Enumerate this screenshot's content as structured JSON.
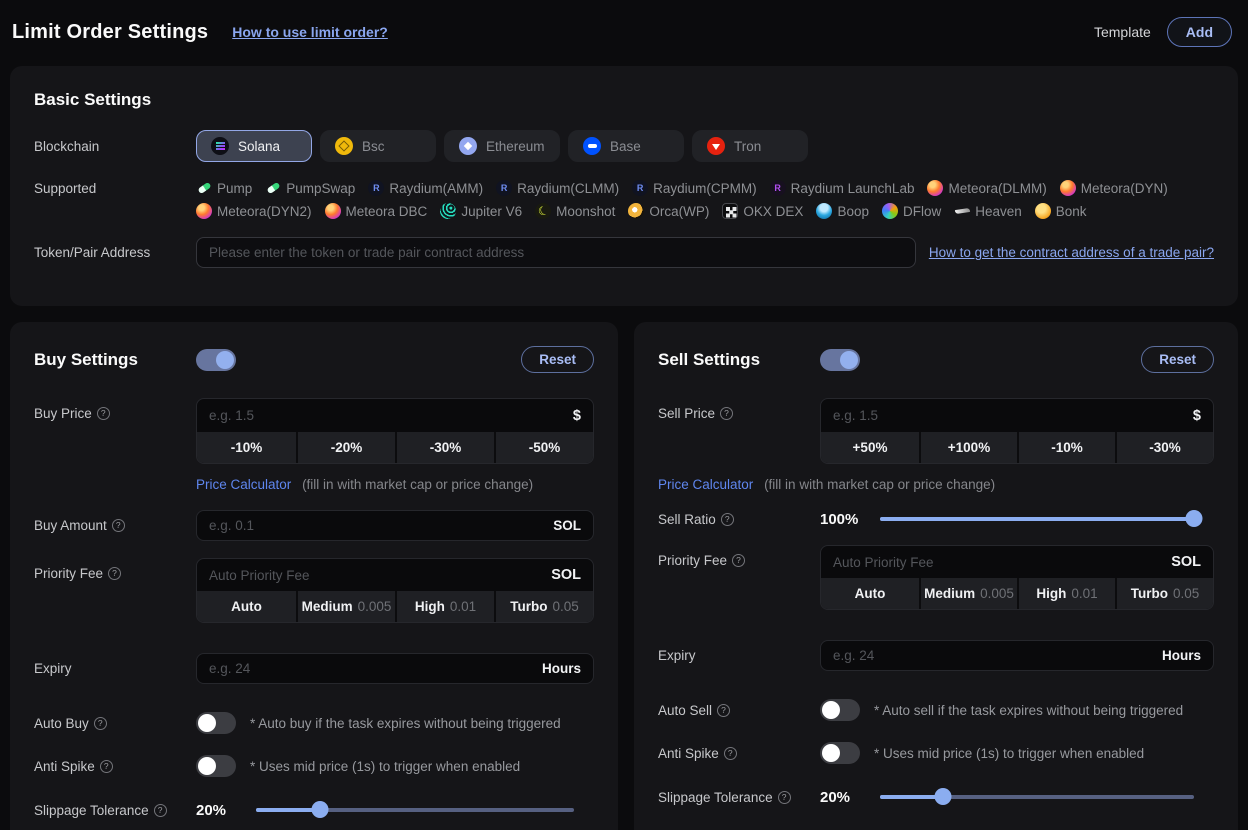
{
  "header": {
    "title": "Limit Order Settings",
    "help_link": "How to use limit order?",
    "template_label": "Template",
    "add_label": "Add"
  },
  "basic": {
    "title": "Basic Settings",
    "blockchain_label": "Blockchain",
    "chains": [
      {
        "label": "Solana",
        "icon": "solana",
        "selected": true
      },
      {
        "label": "Bsc",
        "icon": "bsc",
        "selected": false
      },
      {
        "label": "Ethereum",
        "icon": "eth",
        "selected": false
      },
      {
        "label": "Base",
        "icon": "base",
        "selected": false
      },
      {
        "label": "Tron",
        "icon": "tron",
        "selected": false
      }
    ],
    "supported_label": "Supported",
    "dexes": [
      {
        "label": "Pump",
        "icon": "pill"
      },
      {
        "label": "PumpSwap",
        "icon": "pill"
      },
      {
        "label": "Raydium(AMM)",
        "icon": "raydium"
      },
      {
        "label": "Raydium(CLMM)",
        "icon": "raydium"
      },
      {
        "label": "Raydium(CPMM)",
        "icon": "raydium"
      },
      {
        "label": "Raydium LaunchLab",
        "icon": "launchlab"
      },
      {
        "label": "Meteora(DLMM)",
        "icon": "meteora"
      },
      {
        "label": "Meteora(DYN)",
        "icon": "meteora"
      },
      {
        "label": "Meteora(DYN2)",
        "icon": "meteora"
      },
      {
        "label": "Meteora DBC",
        "icon": "meteora"
      },
      {
        "label": "Jupiter V6",
        "icon": "jupiter"
      },
      {
        "label": "Moonshot",
        "icon": "moonshot"
      },
      {
        "label": "Orca(WP)",
        "icon": "orca"
      },
      {
        "label": "OKX DEX",
        "icon": "okx"
      },
      {
        "label": "Boop",
        "icon": "boop"
      },
      {
        "label": "DFlow",
        "icon": "dflow"
      },
      {
        "label": "Heaven",
        "icon": "heaven"
      },
      {
        "label": "Bonk",
        "icon": "bonk"
      }
    ],
    "token_label": "Token/Pair Address",
    "token_placeholder": "Please enter the token or trade pair contract address",
    "token_help_link": "How to get the contract address of a trade pair?"
  },
  "buy": {
    "title": "Buy Settings",
    "enabled": true,
    "reset_label": "Reset",
    "price_label": "Buy Price",
    "price_placeholder": "e.g. 1.5",
    "price_suffix": "$",
    "price_buttons": [
      "-10%",
      "-20%",
      "-30%",
      "-50%"
    ],
    "calc_link": "Price Calculator",
    "calc_note": "(fill in with market cap or price change)",
    "amount_label": "Buy Amount",
    "amount_placeholder": "e.g. 0.1",
    "amount_suffix": "SOL",
    "fee_label": "Priority Fee",
    "fee_placeholder": "Auto Priority Fee",
    "fee_suffix": "SOL",
    "fee_options": [
      {
        "label": "Auto",
        "value": ""
      },
      {
        "label": "Medium",
        "value": "0.005"
      },
      {
        "label": "High",
        "value": "0.01"
      },
      {
        "label": "Turbo",
        "value": "0.05"
      }
    ],
    "expiry_label": "Expiry",
    "expiry_placeholder": "e.g. 24",
    "expiry_suffix": "Hours",
    "auto_label": "Auto Buy",
    "auto_enabled": false,
    "auto_note": "* Auto buy if the task expires without being triggered",
    "spike_label": "Anti Spike",
    "spike_enabled": false,
    "spike_note": "* Uses mid price (1s) to trigger when enabled",
    "slippage_label": "Slippage Tolerance",
    "slippage_value": "20%"
  },
  "sell": {
    "title": "Sell Settings",
    "enabled": true,
    "reset_label": "Reset",
    "price_label": "Sell Price",
    "price_placeholder": "e.g. 1.5",
    "price_suffix": "$",
    "price_buttons": [
      "+50%",
      "+100%",
      "-10%",
      "-30%"
    ],
    "calc_link": "Price Calculator",
    "calc_note": "(fill in with market cap or price change)",
    "ratio_label": "Sell Ratio",
    "ratio_value": "100%",
    "fee_label": "Priority Fee",
    "fee_placeholder": "Auto Priority Fee",
    "fee_suffix": "SOL",
    "fee_options": [
      {
        "label": "Auto",
        "value": ""
      },
      {
        "label": "Medium",
        "value": "0.005"
      },
      {
        "label": "High",
        "value": "0.01"
      },
      {
        "label": "Turbo",
        "value": "0.05"
      }
    ],
    "expiry_label": "Expiry",
    "expiry_placeholder": "e.g. 24",
    "expiry_suffix": "Hours",
    "auto_label": "Auto Sell",
    "auto_enabled": false,
    "auto_note": "* Auto sell if the task expires without being triggered",
    "spike_label": "Anti Spike",
    "spike_enabled": false,
    "spike_note": "* Uses mid price (1s) to trigger when enabled",
    "slippage_label": "Slippage Tolerance",
    "slippage_value": "20%"
  },
  "colors": {
    "accent": "#8badf0",
    "link": "#8aa6ef",
    "calculator_link": "#5f86ee",
    "panel_bg": "#151518",
    "page_bg": "#0b0b0d",
    "selected_chip_border": "#93a7e6"
  }
}
